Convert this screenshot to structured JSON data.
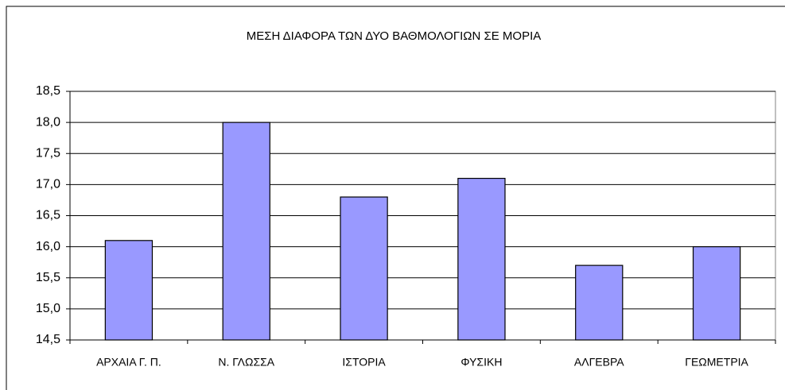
{
  "chart_data": {
    "type": "bar",
    "title": "ΜΕΣΗ ΔΙΑΦΟΡΑ ΤΩΝ ΔΥΟ ΒΑΘΜΟΛΟΓΙΩΝ ΣΕ ΜΟΡΙΑ",
    "categories": [
      "ΑΡΧΑΙΑ Γ. Π.",
      "Ν. ΓΛΩΣΣΑ",
      "ΙΣΤΟΡΙΑ",
      "ΦΥΣΙΚΗ",
      "ΑΛΓΕΒΡΑ",
      "ΓΕΩΜΕΤΡΙΑ"
    ],
    "values": [
      16.1,
      18.0,
      16.8,
      17.1,
      15.7,
      16.0
    ],
    "color": "#9999ff",
    "ylim": [
      14.5,
      18.5
    ],
    "yticks": [
      {
        "value": 14.5,
        "label": "14,5"
      },
      {
        "value": 15,
        "label": "15,0"
      },
      {
        "value": 15.5,
        "label": "15,5"
      },
      {
        "value": 16,
        "label": "16,0"
      },
      {
        "value": 16.5,
        "label": "16,5"
      },
      {
        "value": 17,
        "label": "17,0"
      },
      {
        "value": 17.5,
        "label": "17,5"
      },
      {
        "value": 18,
        "label": "18,0"
      },
      {
        "value": 18.5,
        "label": "18,5"
      }
    ],
    "grid": true
  }
}
